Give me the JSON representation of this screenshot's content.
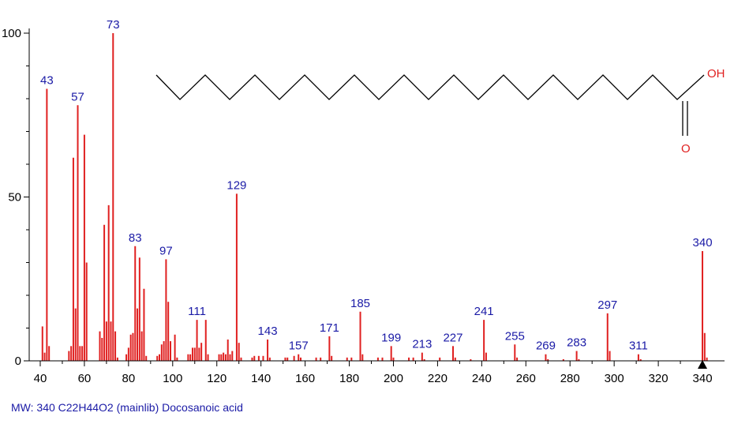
{
  "footer": "MW: 340 C22H44O2 (mainlib) Docosanoic acid",
  "structure": {
    "oh_label": "OH",
    "o_label": "O"
  },
  "chart_data": {
    "type": "bar",
    "xlim": [
      35,
      350
    ],
    "ylim": [
      0,
      100
    ],
    "x_ticks": [
      40,
      60,
      80,
      100,
      120,
      140,
      160,
      180,
      200,
      220,
      240,
      260,
      280,
      300,
      320,
      340
    ],
    "y_ticks": [
      0,
      50,
      100
    ],
    "bar_color": "#e02020",
    "label_color": "#1a1aa6",
    "peaks": [
      [
        41,
        10.5
      ],
      [
        42,
        2.5
      ],
      [
        43,
        83
      ],
      [
        44,
        4.5
      ],
      [
        53,
        3
      ],
      [
        54,
        4.5
      ],
      [
        55,
        62
      ],
      [
        56,
        16
      ],
      [
        57,
        78
      ],
      [
        58,
        4.5
      ],
      [
        59,
        4.5
      ],
      [
        60,
        69
      ],
      [
        61,
        30
      ],
      [
        67,
        9
      ],
      [
        68,
        7
      ],
      [
        69,
        41.5
      ],
      [
        70,
        12
      ],
      [
        71,
        47.5
      ],
      [
        72,
        12
      ],
      [
        73,
        100
      ],
      [
        74,
        9
      ],
      [
        75,
        1
      ],
      [
        79,
        2
      ],
      [
        80,
        4
      ],
      [
        81,
        8
      ],
      [
        82,
        8.5
      ],
      [
        83,
        35
      ],
      [
        84,
        16
      ],
      [
        85,
        31.5
      ],
      [
        86,
        9
      ],
      [
        87,
        22
      ],
      [
        88,
        1.5
      ],
      [
        93,
        1.5
      ],
      [
        94,
        2
      ],
      [
        95,
        5
      ],
      [
        96,
        6
      ],
      [
        97,
        31
      ],
      [
        98,
        18
      ],
      [
        99,
        6
      ],
      [
        101,
        8
      ],
      [
        102,
        1
      ],
      [
        107,
        2
      ],
      [
        108,
        2
      ],
      [
        109,
        4
      ],
      [
        110,
        4
      ],
      [
        111,
        12.5
      ],
      [
        112,
        4
      ],
      [
        113,
        5.5
      ],
      [
        115,
        12.5
      ],
      [
        116,
        2
      ],
      [
        121,
        2
      ],
      [
        122,
        2
      ],
      [
        123,
        2.5
      ],
      [
        124,
        2
      ],
      [
        125,
        6.5
      ],
      [
        126,
        2
      ],
      [
        127,
        3
      ],
      [
        129,
        51
      ],
      [
        130,
        5.5
      ],
      [
        131,
        1
      ],
      [
        136,
        1
      ],
      [
        137,
        1.5
      ],
      [
        139,
        1.5
      ],
      [
        141,
        1.5
      ],
      [
        143,
        6.5
      ],
      [
        144,
        1
      ],
      [
        151,
        1
      ],
      [
        152,
        1
      ],
      [
        155,
        1.5
      ],
      [
        157,
        2
      ],
      [
        158,
        1
      ],
      [
        165,
        1
      ],
      [
        167,
        1
      ],
      [
        171,
        7.5
      ],
      [
        172,
        1.5
      ],
      [
        179,
        1
      ],
      [
        181,
        1
      ],
      [
        185,
        15
      ],
      [
        186,
        2
      ],
      [
        193,
        1
      ],
      [
        195,
        1
      ],
      [
        199,
        4.5
      ],
      [
        200,
        1
      ],
      [
        207,
        1
      ],
      [
        209,
        1
      ],
      [
        213,
        2.5
      ],
      [
        214,
        0.5
      ],
      [
        221,
        1
      ],
      [
        227,
        4.5
      ],
      [
        228,
        1
      ],
      [
        235,
        0.5
      ],
      [
        241,
        12.5
      ],
      [
        242,
        2.5
      ],
      [
        255,
        5
      ],
      [
        256,
        1
      ],
      [
        269,
        2
      ],
      [
        270,
        0.5
      ],
      [
        277,
        0.5
      ],
      [
        283,
        3
      ],
      [
        284,
        0.5
      ],
      [
        297,
        14.5
      ],
      [
        298,
        3
      ],
      [
        311,
        2
      ],
      [
        312,
        0.5
      ],
      [
        340,
        33.5
      ],
      [
        341,
        8.5
      ],
      [
        342,
        1
      ]
    ],
    "peak_labels": [
      "43",
      "57",
      "73",
      "83",
      "97",
      "111",
      "129",
      "143",
      "157",
      "171",
      "185",
      "199",
      "213",
      "227",
      "241",
      "255",
      "269",
      "283",
      "297",
      "311",
      "340"
    ],
    "molecular_ion_marker": 340
  }
}
